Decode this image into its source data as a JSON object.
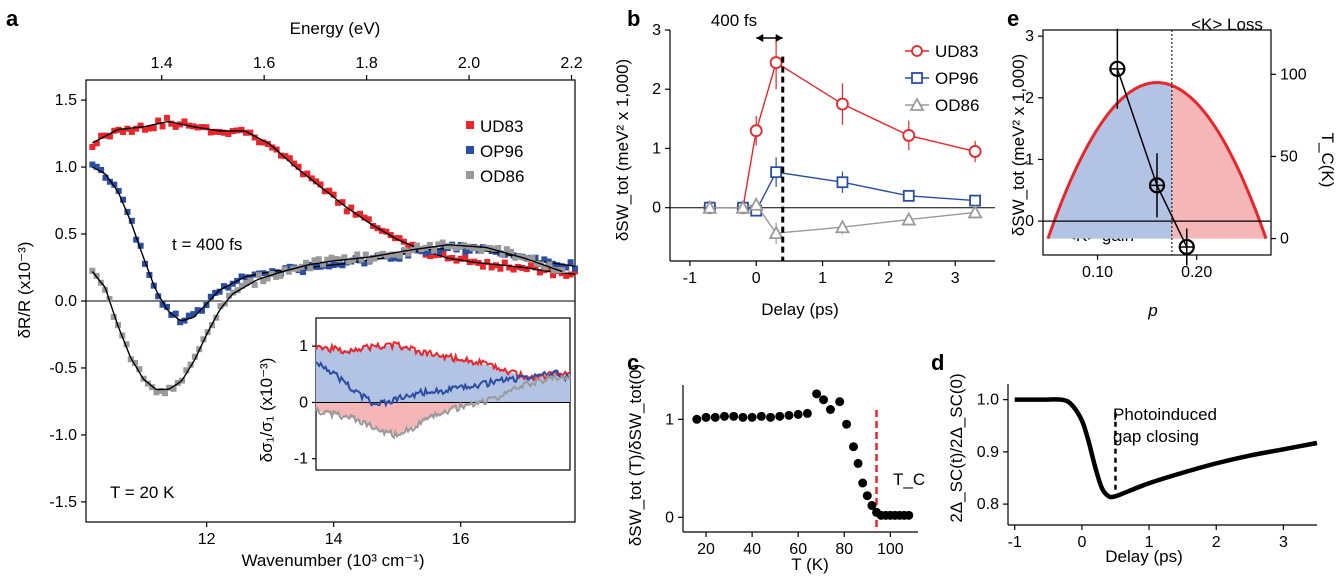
{
  "panel_labels": {
    "a": "a",
    "b": "b",
    "c": "c",
    "d": "d",
    "e": "e"
  },
  "colors": {
    "UD83": "#e8262b",
    "OP96": "#2a4ea1",
    "OD86": "#9a9a9a",
    "fit": "#000000",
    "blue_fill": "#b3c3e4",
    "red_fill": "#f4b6b7",
    "tc": "#e8262b"
  },
  "chart_data": [
    {
      "id": "a",
      "type": "scatter",
      "xlabel": "Wavenumber (10³ cm⁻¹)",
      "ylabel": "δR/R (x10⁻³)",
      "top_axis_label": "Energy (eV)",
      "x_ticks": [
        "12",
        "14",
        "16"
      ],
      "y_ticks": [
        "1.5",
        "1.0",
        "0.5",
        "0.0",
        "-0.5",
        "-1.0",
        "-1.5"
      ],
      "top_ticks": [
        "1.4",
        "1.6",
        "1.8",
        "2.0",
        "2.2"
      ],
      "xlim": [
        10.1,
        17.8
      ],
      "ylim": [
        -1.65,
        1.65
      ],
      "annotations": {
        "delay": "t = 400 fs",
        "temp": "T = 20 K"
      },
      "legend": [
        "UD83",
        "OP96",
        "OD86"
      ],
      "series": [
        {
          "name": "UD83",
          "x": [
            10.2,
            10.6,
            11.0,
            11.4,
            11.8,
            12.2,
            12.6,
            13.0,
            13.4,
            13.8,
            14.2,
            14.6,
            15.0,
            15.4,
            15.8,
            16.2,
            16.6,
            17.0,
            17.4,
            17.8
          ],
          "y": [
            1.18,
            1.28,
            1.3,
            1.34,
            1.3,
            1.27,
            1.27,
            1.17,
            1.0,
            0.85,
            0.7,
            0.57,
            0.46,
            0.38,
            0.32,
            0.29,
            0.27,
            0.25,
            0.22,
            0.2
          ]
        },
        {
          "name": "OP96",
          "x": [
            10.2,
            10.4,
            10.6,
            10.8,
            11.0,
            11.2,
            11.4,
            11.6,
            11.8,
            12.0,
            12.2,
            12.6,
            13.0,
            13.6,
            14.2,
            14.8,
            15.4,
            16.0,
            16.6,
            17.2,
            17.8
          ],
          "y": [
            1.0,
            0.95,
            0.82,
            0.6,
            0.33,
            0.08,
            -0.08,
            -0.15,
            -0.12,
            -0.02,
            0.08,
            0.18,
            0.22,
            0.25,
            0.28,
            0.32,
            0.38,
            0.4,
            0.36,
            0.3,
            0.26
          ]
        },
        {
          "name": "OD86",
          "x": [
            10.2,
            10.4,
            10.6,
            10.8,
            11.0,
            11.2,
            11.4,
            11.6,
            11.8,
            12.0,
            12.2,
            12.4,
            12.8,
            13.2,
            13.6,
            14.0,
            14.6,
            15.2,
            15.8,
            16.4,
            17.0,
            17.6
          ],
          "y": [
            0.22,
            0.1,
            -0.18,
            -0.42,
            -0.58,
            -0.66,
            -0.66,
            -0.6,
            -0.45,
            -0.25,
            -0.07,
            0.05,
            0.16,
            0.22,
            0.27,
            0.3,
            0.33,
            0.38,
            0.42,
            0.4,
            0.32,
            0.22
          ]
        }
      ],
      "inset": {
        "ylabel": "δσ₁/σ₁ (x10⁻³)",
        "y_ticks": [
          "1",
          "0",
          "-1"
        ],
        "xlim": [
          10.2,
          17.8
        ],
        "ylim": [
          -1.2,
          1.5
        ],
        "series": [
          {
            "name": "UD83",
            "x": [
              10.2,
              11.0,
              11.8,
              12.6,
              13.4,
              14.2,
              15.0,
              15.8,
              16.6,
              17.4,
              17.8
            ],
            "y": [
              1.0,
              0.92,
              0.98,
              1.02,
              0.88,
              0.8,
              0.72,
              0.58,
              0.42,
              0.52,
              0.5
            ]
          },
          {
            "name": "OP96",
            "x": [
              10.2,
              10.8,
              11.4,
              12.0,
              12.6,
              13.4,
              14.2,
              15.0,
              15.8,
              16.6,
              17.4,
              17.8
            ],
            "y": [
              0.75,
              0.48,
              0.18,
              -0.05,
              0.05,
              0.18,
              0.22,
              0.3,
              0.4,
              0.45,
              0.52,
              0.42
            ]
          },
          {
            "name": "OD86",
            "x": [
              10.2,
              10.8,
              11.4,
              12.0,
              12.6,
              13.2,
              13.8,
              14.4,
              15.0,
              15.6,
              16.2,
              16.8,
              17.4,
              17.8
            ],
            "y": [
              -0.15,
              -0.22,
              -0.3,
              -0.48,
              -0.58,
              -0.42,
              -0.22,
              -0.1,
              -0.02,
              0.08,
              0.25,
              0.38,
              0.45,
              0.42
            ]
          }
        ]
      }
    },
    {
      "id": "b",
      "type": "line",
      "xlabel": "Delay (ps)",
      "ylabel": "δSW_tot (meV² x 1,000)",
      "x_ticks": [
        "-1",
        "0",
        "1",
        "2",
        "3"
      ],
      "y_ticks": [
        "0",
        "1",
        "2",
        "3"
      ],
      "xlim": [
        -1.3,
        3.6
      ],
      "ylim": [
        -0.9,
        3.0
      ],
      "annotation": "400 fs",
      "marker_delay": 0.4,
      "legend": [
        "UD83",
        "OP96",
        "OD86"
      ],
      "series": [
        {
          "name": "UD83",
          "x": [
            -0.7,
            -0.2,
            0.0,
            0.3,
            1.3,
            2.3,
            3.3
          ],
          "y": [
            0.0,
            0.0,
            1.3,
            2.45,
            1.75,
            1.22,
            0.95
          ],
          "err": [
            0.05,
            0.05,
            0.25,
            0.45,
            0.35,
            0.25,
            0.18
          ]
        },
        {
          "name": "OP96",
          "x": [
            -0.7,
            -0.2,
            0.0,
            0.3,
            1.3,
            2.3,
            3.3
          ],
          "y": [
            0.0,
            0.0,
            -0.05,
            0.6,
            0.43,
            0.2,
            0.12
          ],
          "err": [
            0.05,
            0.05,
            0.08,
            0.25,
            0.18,
            0.08,
            0.06
          ]
        },
        {
          "name": "OD86",
          "x": [
            -0.7,
            -0.2,
            0.0,
            0.3,
            1.3,
            2.3,
            3.3
          ],
          "y": [
            0.0,
            0.0,
            0.05,
            -0.43,
            -0.33,
            -0.2,
            -0.08
          ],
          "err": [
            0.05,
            0.05,
            0.06,
            0.18,
            0.12,
            0.08,
            0.06
          ]
        }
      ]
    },
    {
      "id": "c",
      "type": "scatter",
      "xlabel": "T (K)",
      "ylabel": "δSW_tot (T)/δSW_tot(0)",
      "x_ticks": [
        "20",
        "40",
        "60",
        "80",
        "100"
      ],
      "y_ticks": [
        "0",
        "1"
      ],
      "xlim": [
        10,
        112
      ],
      "ylim": [
        -0.15,
        1.35
      ],
      "tc_label": "T_C",
      "tc": 94,
      "x": [
        16,
        20,
        24,
        28,
        32,
        36,
        40,
        44,
        48,
        52,
        56,
        60,
        64,
        68,
        71,
        74,
        78,
        81,
        84,
        86,
        88,
        90,
        92,
        94,
        96,
        98,
        100,
        102,
        104,
        106,
        108
      ],
      "y": [
        1.0,
        1.02,
        1.02,
        1.03,
        1.03,
        1.02,
        1.02,
        1.03,
        1.02,
        1.03,
        1.04,
        1.05,
        1.06,
        1.26,
        1.2,
        1.1,
        1.18,
        0.95,
        0.72,
        0.55,
        0.35,
        0.22,
        0.12,
        0.05,
        0.02,
        0.02,
        0.02,
        0.02,
        0.02,
        0.02,
        0.02
      ]
    },
    {
      "id": "d",
      "type": "line",
      "xlabel": "Delay (ps)",
      "ylabel": "2Δ_SC(t)/2Δ_SC(0)",
      "x_ticks": [
        "-1",
        "0",
        "1",
        "2",
        "3"
      ],
      "y_ticks": [
        "0.8",
        "0.9",
        "1.0"
      ],
      "xlim": [
        -1.1,
        3.5
      ],
      "ylim": [
        0.76,
        1.03
      ],
      "annotation_line1": "Photoinduced",
      "annotation_line2": "gap closing",
      "marker_delay": 0.5,
      "x": [
        -1.0,
        -0.6,
        -0.3,
        -0.15,
        0.0,
        0.1,
        0.2,
        0.3,
        0.4,
        0.5,
        0.7,
        1.0,
        1.5,
        2.0,
        2.5,
        3.0,
        3.5
      ],
      "y": [
        1.0,
        1.0,
        1.0,
        0.99,
        0.96,
        0.92,
        0.87,
        0.83,
        0.815,
        0.815,
        0.825,
        0.84,
        0.86,
        0.878,
        0.893,
        0.905,
        0.917
      ]
    },
    {
      "id": "e",
      "type": "line",
      "xlabel": "p",
      "ylabel": "δSW_tot (meV² x 1,000)",
      "right_ylabel": "T_C(K)",
      "x_ticks": [
        "0.10",
        "0.20"
      ],
      "y_ticks": [
        "0",
        "1",
        "2",
        "3"
      ],
      "right_ticks": [
        "0",
        "50",
        "100"
      ],
      "xlim": [
        0.045,
        0.275
      ],
      "ylim": [
        -0.55,
        3.1
      ],
      "loss_label": "<K> Loss",
      "gain_label": "<K> gain",
      "boundary_p": 0.175,
      "dome": {
        "p_min": 0.05,
        "p_max": 0.27,
        "p_opt": 0.16,
        "tc_max": 95
      },
      "series": [
        {
          "name": "δSW_tot",
          "x": [
            0.12,
            0.16,
            0.19
          ],
          "y": [
            2.47,
            0.58,
            -0.42
          ],
          "err": [
            0.65,
            0.52,
            0.3
          ],
          "xerr": [
            0.008,
            0.008,
            0.008
          ]
        }
      ]
    }
  ]
}
